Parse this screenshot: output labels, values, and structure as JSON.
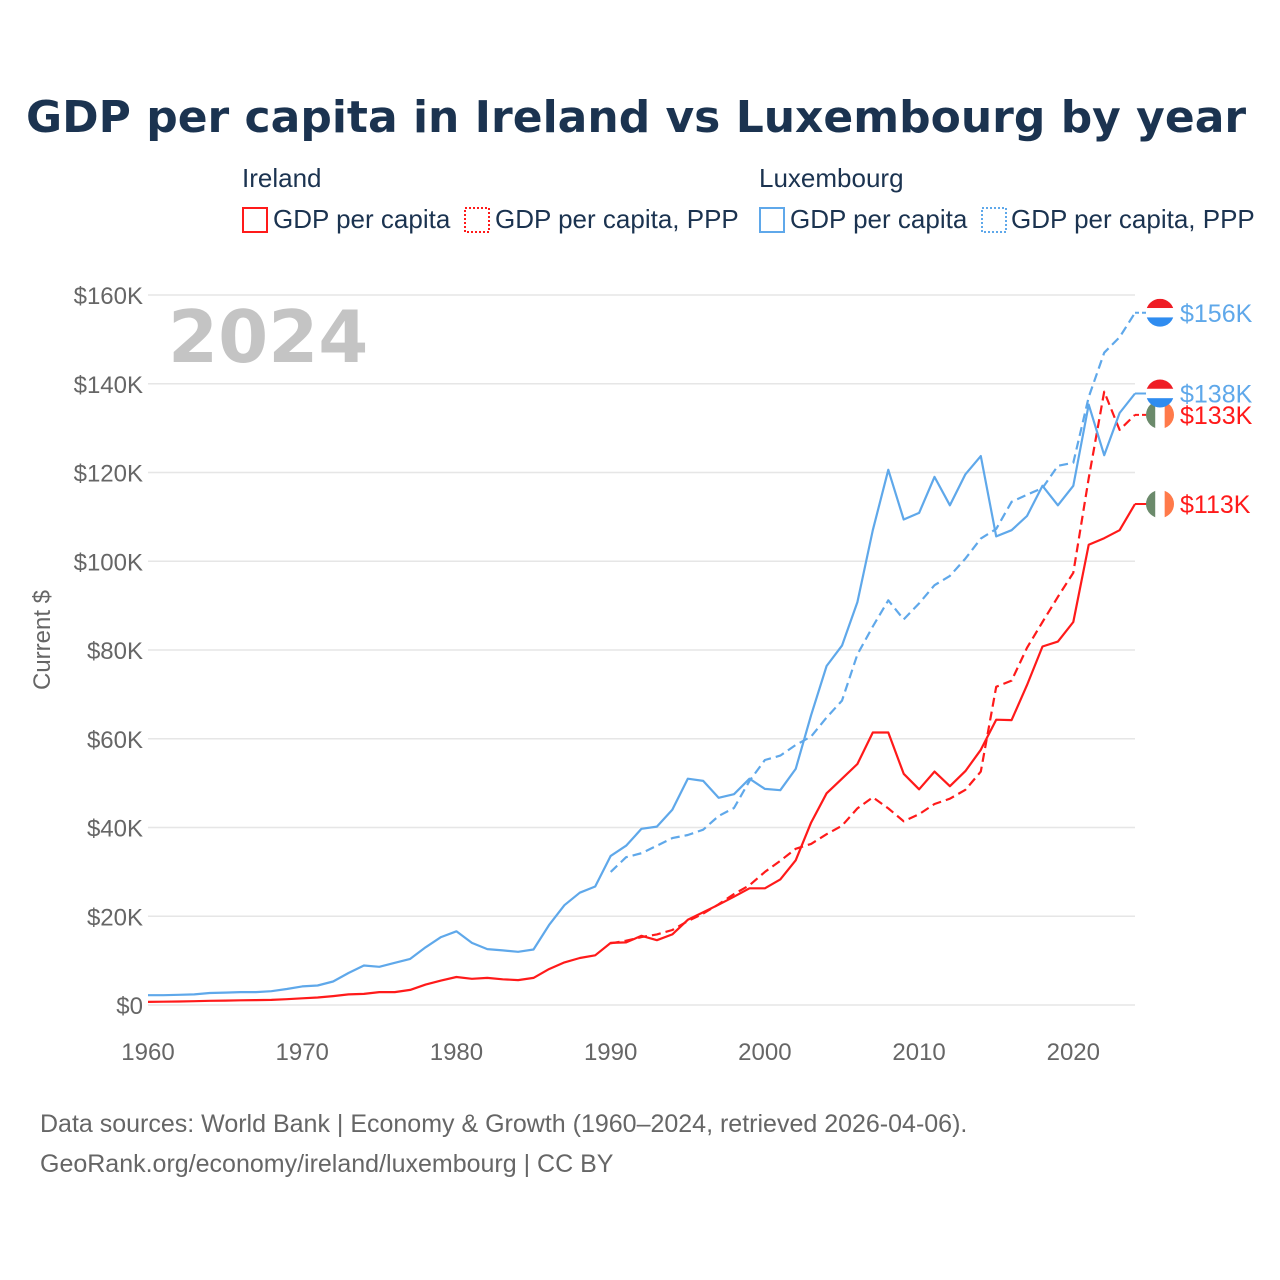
{
  "chart_data": {
    "type": "line",
    "title": "GDP per capita in Ireland vs Luxembourg by year",
    "ylabel": "Current $",
    "xlabel": "",
    "xlim": [
      1960,
      2024
    ],
    "ylim": [
      0,
      160000
    ],
    "x_ticks": [
      1960,
      1970,
      1980,
      1990,
      2000,
      2010,
      2020
    ],
    "x_tick_labels": [
      "1960",
      "1970",
      "1980",
      "1990",
      "2000",
      "2010",
      "2020"
    ],
    "y_ticks": [
      0,
      20000,
      40000,
      60000,
      80000,
      100000,
      120000,
      140000,
      160000
    ],
    "y_tick_labels": [
      "$0",
      "$20K",
      "$40K",
      "$60K",
      "$80K",
      "$100K",
      "$120K",
      "$140K",
      "$160K"
    ],
    "grid": true,
    "year_watermark": "2024",
    "legend": {
      "placement": "top",
      "groups": [
        {
          "country": "Ireland",
          "items": [
            "GDP per capita",
            "GDP per capita, PPP"
          ]
        },
        {
          "country": "Luxembourg",
          "items": [
            "GDP per capita",
            "GDP per capita, PPP"
          ]
        }
      ]
    },
    "series": [
      {
        "name": "Ireland GDP per capita",
        "country": "Ireland",
        "style": "solid",
        "color": "#ff1a1a",
        "start": 1960,
        "end_label": "$113K",
        "values_k": [
          0.7,
          0.75,
          0.8,
          0.85,
          0.95,
          1.0,
          1.05,
          1.1,
          1.15,
          1.3,
          1.5,
          1.7,
          2.0,
          2.4,
          2.5,
          2.9,
          2.9,
          3.4,
          4.6,
          5.5,
          6.3,
          5.9,
          6.1,
          5.8,
          5.6,
          6.1,
          8.1,
          9.6,
          10.6,
          11.2,
          14.0,
          14.1,
          15.6,
          14.6,
          15.9,
          19.2,
          20.9,
          22.6,
          24.4,
          26.3,
          26.3,
          28.3,
          32.6,
          41.1,
          47.7,
          51.0,
          54.3,
          61.4,
          61.4,
          52.1,
          48.6,
          52.6,
          49.3,
          52.7,
          57.5,
          64.3,
          64.2,
          72.1,
          80.8,
          81.9,
          86.3,
          103.7,
          105.2,
          107.0,
          112.9
        ]
      },
      {
        "name": "Ireland GDP per capita, PPP",
        "country": "Ireland",
        "style": "dashed",
        "color": "#ff1a1a",
        "start": 1990,
        "end_label": "$133K",
        "values_k": [
          13.9,
          14.5,
          15.3,
          15.9,
          16.9,
          18.9,
          20.6,
          22.7,
          25.0,
          27.0,
          30.0,
          32.5,
          35.2,
          36.3,
          38.5,
          40.4,
          44.3,
          46.8,
          44.3,
          41.4,
          43.0,
          45.3,
          46.5,
          48.5,
          52.6,
          71.7,
          73.1,
          80.5,
          86.3,
          92.0,
          97.4,
          118.7,
          138.2,
          129.6,
          133.0
        ]
      },
      {
        "name": "Luxembourg GDP per capita",
        "country": "Luxembourg",
        "style": "solid",
        "color": "#5fa8ea",
        "start": 1960,
        "end_label": "$138K",
        "values_k": [
          2.2,
          2.2,
          2.3,
          2.4,
          2.7,
          2.8,
          2.9,
          2.9,
          3.1,
          3.6,
          4.2,
          4.4,
          5.3,
          7.2,
          8.9,
          8.6,
          9.5,
          10.4,
          13.0,
          15.3,
          16.6,
          14.0,
          12.6,
          12.3,
          12.0,
          12.5,
          18.0,
          22.5,
          25.3,
          26.7,
          33.6,
          35.9,
          39.7,
          40.2,
          44.0,
          51.0,
          50.5,
          46.7,
          47.5,
          51.0,
          48.7,
          48.4,
          53.2,
          65.3,
          76.4,
          81.0,
          90.8,
          107.0,
          120.6,
          109.4,
          110.9,
          119.0,
          112.6,
          119.6,
          123.7,
          105.6,
          107.0,
          110.2,
          117.0,
          112.6,
          117.0,
          135.3,
          123.9,
          133.4,
          137.8
        ]
      },
      {
        "name": "Luxembourg GDP per capita, PPP",
        "country": "Luxembourg",
        "style": "dashed",
        "color": "#5fa8ea",
        "start": 1990,
        "end_label": "$156K",
        "values_k": [
          30.0,
          33.3,
          34.2,
          35.9,
          37.6,
          38.3,
          39.5,
          42.6,
          44.4,
          50.5,
          55.2,
          56.2,
          58.6,
          60.5,
          64.8,
          68.6,
          79.0,
          85.3,
          91.2,
          86.9,
          90.5,
          94.6,
          96.7,
          100.6,
          105.1,
          107.3,
          113.4,
          115.0,
          116.5,
          121.5,
          122.2,
          137.0,
          147.0,
          150.5,
          156.0
        ]
      }
    ],
    "source_lines": [
      "Data sources: World Bank | Economy & Growth (1960–2024, retrieved 2026-04-06).",
      "GeoRank.org/economy/ireland/luxembourg | CC BY"
    ]
  }
}
